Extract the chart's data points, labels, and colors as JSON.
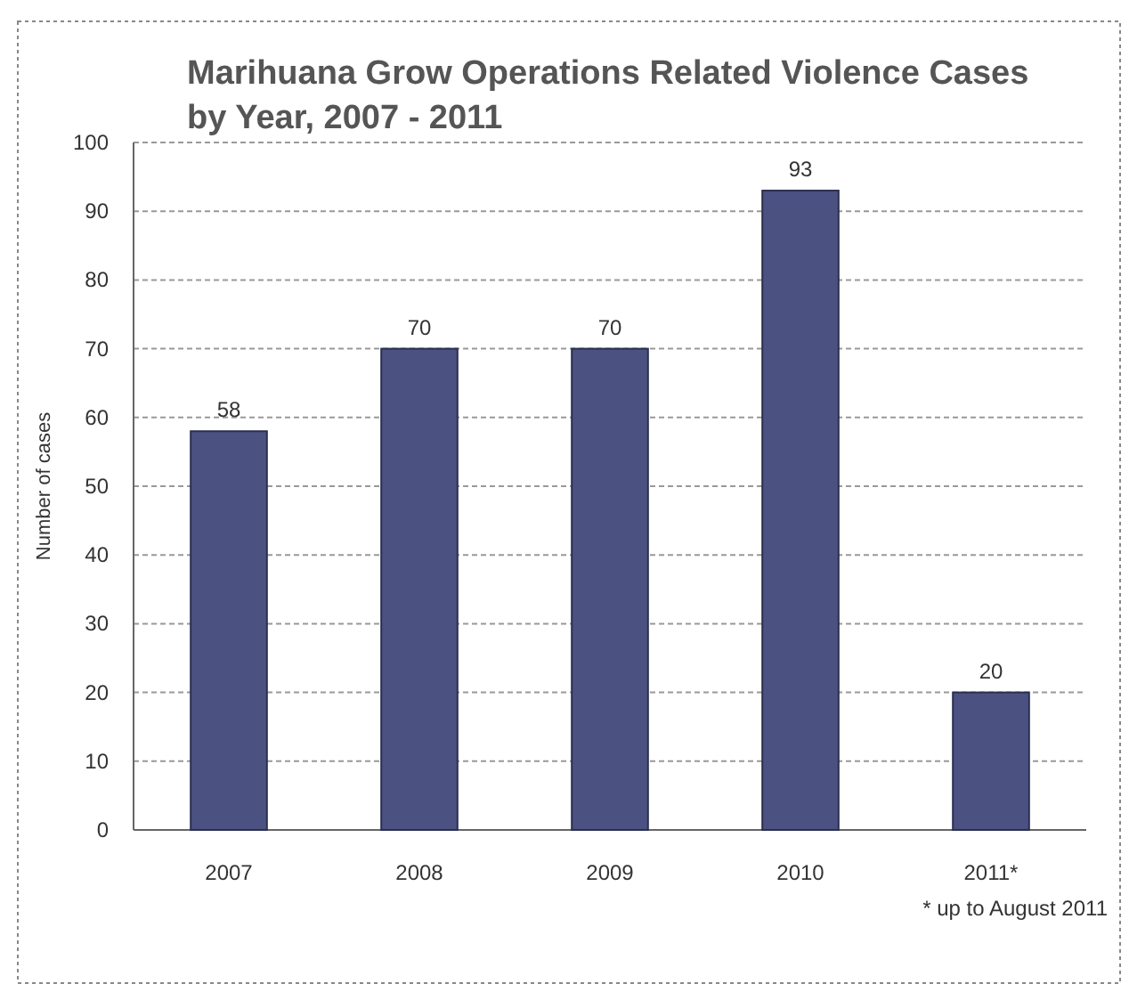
{
  "chart_data": {
    "type": "bar",
    "title": "Marihuana Grow Operations Related Violence Cases\nby Year, 2007 - 2011",
    "ylabel": "Number of cases",
    "categories": [
      "2007",
      "2008",
      "2009",
      "2010",
      "2011*"
    ],
    "values": [
      58,
      70,
      70,
      93,
      20
    ],
    "color": "#4b5282",
    "ylim": [
      0,
      100
    ],
    "yticks": [
      0,
      10,
      20,
      30,
      40,
      50,
      60,
      70,
      80,
      90,
      100
    ],
    "grid": "y",
    "data_labels": true,
    "annotations": [
      "* up to August 2011"
    ]
  }
}
